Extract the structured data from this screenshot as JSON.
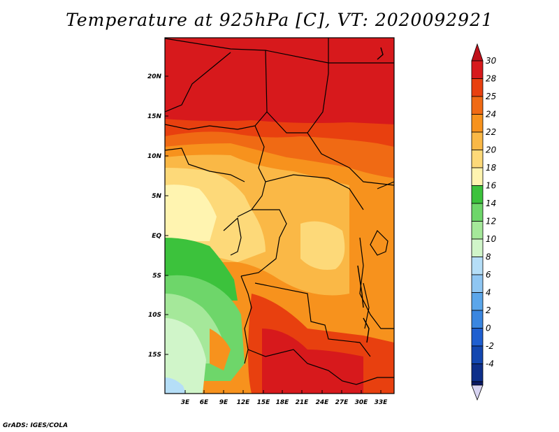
{
  "title": "Temperature at 925hPa [C], VT: 2020092921",
  "credit": "GrADS: IGES/COLA",
  "map": {
    "lat_ticks": [
      "20N",
      "15N",
      "10N",
      "5N",
      "EQ",
      "5S",
      "10S",
      "15S"
    ],
    "lon_ticks": [
      "3E",
      "6E",
      "9E",
      "12E",
      "15E",
      "18E",
      "21E",
      "24E",
      "27E",
      "30E",
      "33E"
    ]
  },
  "colorbar": {
    "levels": [
      {
        "label": "30",
        "color": "#d7191c"
      },
      {
        "label": "28",
        "color": "#e8400f"
      },
      {
        "label": "25",
        "color": "#f06a14"
      },
      {
        "label": "24",
        "color": "#f7921d"
      },
      {
        "label": "22",
        "color": "#fab846"
      },
      {
        "label": "20",
        "color": "#fdd979"
      },
      {
        "label": "18",
        "color": "#fff4b0"
      },
      {
        "label": "16",
        "color": "#3cc23c"
      },
      {
        "label": "14",
        "color": "#6ed66a"
      },
      {
        "label": "12",
        "color": "#a5e89a"
      },
      {
        "label": "10",
        "color": "#d0f5c9"
      },
      {
        "label": "8",
        "color": "#b5def7"
      },
      {
        "label": "6",
        "color": "#8fc6f2"
      },
      {
        "label": "4",
        "color": "#5ba6ea"
      },
      {
        "label": "2",
        "color": "#3a86e0"
      },
      {
        "label": "0",
        "color": "#1f5fd0"
      },
      {
        "label": "-2",
        "color": "#1347b0"
      },
      {
        "label": "-4",
        "color": "#0e2f8a"
      }
    ],
    "top_color": "#c0101a",
    "bottom_color": "#0b1a66",
    "bottom_tip_color": "#d8d4f2"
  }
}
